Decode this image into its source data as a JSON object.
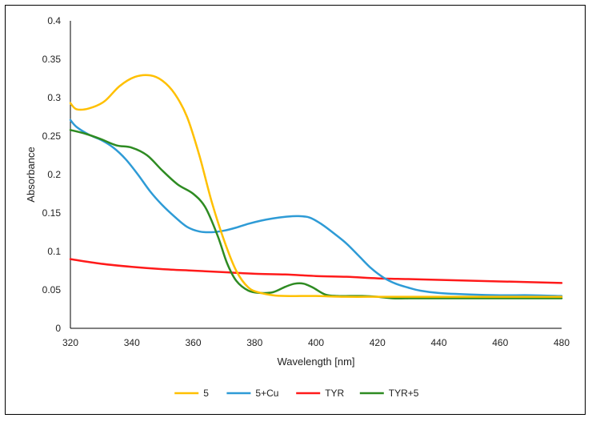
{
  "chart_data": {
    "type": "line",
    "title": "",
    "xlabel": "Wavelength [nm]",
    "ylabel": "Absorbance",
    "xlim": [
      320,
      480
    ],
    "ylim": [
      0,
      0.4
    ],
    "xticks": [
      320,
      340,
      360,
      380,
      400,
      420,
      440,
      460,
      480
    ],
    "yticks": [
      0,
      0.05,
      0.1,
      0.15,
      0.2,
      0.25,
      0.3,
      0.35,
      0.4
    ],
    "xtick_labels": [
      "320",
      "340",
      "360",
      "380",
      "400",
      "420",
      "440",
      "460",
      "480"
    ],
    "ytick_labels": [
      "0",
      "0.05",
      "0.1",
      "0.15",
      "0.2",
      "0.25",
      "0.3",
      "0.35",
      "0.4"
    ],
    "grid": false,
    "legend_position": "bottom",
    "series": [
      {
        "name": "5",
        "color": "#FFC000",
        "x": [
          320,
          322,
          326,
          331,
          336,
          341,
          346,
          350,
          354,
          358,
          362,
          366,
          370,
          374,
          378,
          382,
          386,
          390,
          395,
          400,
          410,
          420,
          430,
          440,
          460,
          480
        ],
        "y": [
          0.293,
          0.285,
          0.286,
          0.295,
          0.315,
          0.327,
          0.329,
          0.322,
          0.305,
          0.275,
          0.225,
          0.165,
          0.115,
          0.075,
          0.053,
          0.046,
          0.043,
          0.042,
          0.042,
          0.042,
          0.041,
          0.041,
          0.041,
          0.041,
          0.041,
          0.041
        ]
      },
      {
        "name": "5+Cu",
        "color": "#2E9BD6",
        "x": [
          320,
          322,
          326,
          330,
          334,
          338,
          342,
          346,
          350,
          354,
          358,
          362,
          366,
          370,
          374,
          378,
          382,
          386,
          390,
          394,
          398,
          402,
          406,
          410,
          414,
          418,
          422,
          426,
          430,
          434,
          440,
          450,
          460,
          470,
          480
        ],
        "y": [
          0.271,
          0.262,
          0.252,
          0.245,
          0.235,
          0.22,
          0.2,
          0.178,
          0.16,
          0.145,
          0.132,
          0.126,
          0.125,
          0.127,
          0.131,
          0.136,
          0.14,
          0.143,
          0.145,
          0.146,
          0.144,
          0.135,
          0.123,
          0.11,
          0.094,
          0.078,
          0.066,
          0.058,
          0.053,
          0.049,
          0.046,
          0.044,
          0.043,
          0.043,
          0.042
        ]
      },
      {
        "name": "TYR",
        "color": "#FF1A1A",
        "x": [
          320,
          330,
          340,
          350,
          360,
          370,
          380,
          390,
          400,
          410,
          420,
          430,
          440,
          450,
          460,
          470,
          480
        ],
        "y": [
          0.09,
          0.084,
          0.08,
          0.077,
          0.075,
          0.073,
          0.071,
          0.07,
          0.068,
          0.067,
          0.065,
          0.064,
          0.063,
          0.062,
          0.061,
          0.06,
          0.059
        ]
      },
      {
        "name": "TYR+5",
        "color": "#2E8B22",
        "x": [
          320,
          325,
          330,
          335,
          340,
          345,
          350,
          355,
          360,
          364,
          368,
          371,
          374,
          378,
          382,
          386,
          390,
          393,
          396,
          399,
          403,
          407,
          411,
          415,
          420,
          425,
          430,
          440,
          460,
          480
        ],
        "y": [
          0.258,
          0.253,
          0.246,
          0.238,
          0.235,
          0.225,
          0.205,
          0.187,
          0.175,
          0.157,
          0.12,
          0.085,
          0.062,
          0.049,
          0.046,
          0.047,
          0.054,
          0.058,
          0.058,
          0.053,
          0.044,
          0.042,
          0.042,
          0.042,
          0.041,
          0.039,
          0.039,
          0.039,
          0.039,
          0.039
        ]
      }
    ]
  }
}
